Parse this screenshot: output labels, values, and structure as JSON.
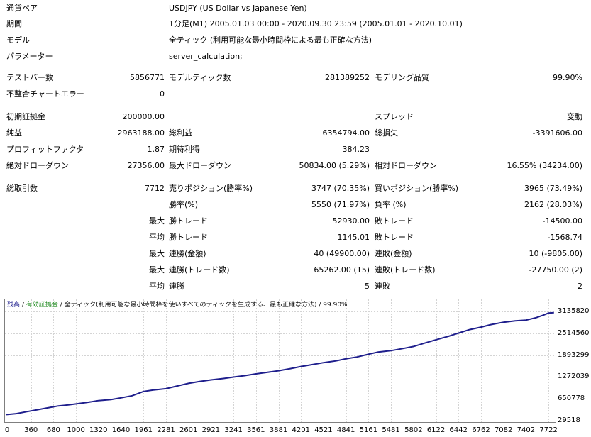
{
  "report": {
    "symbol_label": "通貨ペア",
    "symbol_value": "USDJPY (US Dollar vs Japanese Yen)",
    "period_label": "期間",
    "period_value": "1分足(M1) 2005.01.03 00:00 - 2020.09.30 23:59 (2005.01.01 - 2020.10.01)",
    "model_label": "モデル",
    "model_value": "全ティック (利用可能な最小時間枠による最も正確な方法)",
    "params_label": "パラメーター",
    "params_value": "server_calculation;",
    "bars_label": "テストバー数",
    "bars_value": "5856771",
    "ticks_label": "モデルティック数",
    "ticks_value": "281389252",
    "quality_label": "モデリング品質",
    "quality_value": "99.90%",
    "mismatch_label": "不整合チャートエラー",
    "mismatch_value": "0",
    "deposit_label": "初期証拠金",
    "deposit_value": "200000.00",
    "spread_label": "スプレッド",
    "spread_value": "変動",
    "net_label": "純益",
    "net_value": "2963188.00",
    "gross_profit_label": "総利益",
    "gross_profit_value": "6354794.00",
    "gross_loss_label": "総損失",
    "gross_loss_value": "-3391606.00",
    "pf_label": "プロフィットファクタ",
    "pf_value": "1.87",
    "expected_label": "期待利得",
    "expected_value": "384.23",
    "abs_dd_label": "絶対ドローダウン",
    "abs_dd_value": "27356.00",
    "max_dd_label": "最大ドローダウン",
    "max_dd_value": "50834.00 (5.29%)",
    "rel_dd_label": "相対ドローダウン",
    "rel_dd_value": "16.55% (34234.00)",
    "total_trades_label": "総取引数",
    "total_trades_value": "7712",
    "short_label": "売りポジション(勝率%)",
    "short_value": "3747 (70.35%)",
    "long_label": "買いポジション(勝率%)",
    "long_value": "3965 (73.49%)",
    "win_rate_label": "勝率(%)",
    "win_rate_value": "5550 (71.97%)",
    "loss_rate_label": "負率 (%)",
    "loss_rate_value": "2162 (28.03%)",
    "max_word": "最大",
    "avg_word": "平均",
    "max_win_label": "勝トレード",
    "max_win_value": "52930.00",
    "max_loss_label": "敗トレード",
    "max_loss_value": "-14500.00",
    "avg_win_label": "勝トレード",
    "avg_win_value": "1145.01",
    "avg_loss_label": "敗トレード",
    "avg_loss_value": "-1568.74",
    "max_cons_wins_label": "連勝(金額)",
    "max_cons_wins_value": "40 (49900.00)",
    "max_cons_losses_label": "連敗(金額)",
    "max_cons_losses_value": "10 (-9805.00)",
    "max_cons_profit_label": "連勝(トレード数)",
    "max_cons_profit_value": "65262.00 (15)",
    "max_cons_loss_label": "連敗(トレード数)",
    "max_cons_loss_value": "-27750.00 (2)",
    "avg_cons_wins_label": "連勝",
    "avg_cons_wins_value": "5",
    "avg_cons_losses_label": "連敗",
    "avg_cons_losses_value": "2"
  },
  "legend": {
    "balance": "残高",
    "sep1": " / ",
    "equity": "有効証拠金",
    "sep2": " / ",
    "model_desc": "全ティック(利用可能な最小時間枠を使いすべてのティックを生成する、最も正確な方法)",
    "sep3": " / ",
    "quality": "99.90%"
  },
  "colors": {
    "balance_line": "#1e1e8c",
    "balance_legend": "#1e1e8c",
    "equity_legend": "#1f8a1f",
    "grid": "#d4d4d4"
  },
  "chart_data": {
    "type": "line",
    "title": "",
    "xlabel": "",
    "ylabel": "",
    "x_ticks": [
      "0",
      "360",
      "680",
      "1000",
      "1320",
      "1640",
      "1961",
      "2281",
      "2601",
      "2921",
      "3241",
      "3561",
      "3881",
      "4201",
      "4521",
      "4841",
      "5161",
      "5481",
      "5802",
      "6122",
      "6442",
      "6762",
      "7082",
      "7402",
      "7722"
    ],
    "y_ticks": [
      "3135820",
      "2514560",
      "1893299",
      "1272039",
      "650778",
      "29518"
    ],
    "xlim": [
      0,
      7812
    ],
    "ylim": [
      29518,
      3135820
    ],
    "grid": true,
    "series": [
      {
        "x": [
          0,
          150,
          300,
          450,
          600,
          750,
          850,
          1000,
          1150,
          1320,
          1500,
          1640,
          1800,
          1961,
          2100,
          2281,
          2450,
          2601,
          2750,
          2921,
          3100,
          3241,
          3400,
          3561,
          3700,
          3881,
          4050,
          4201,
          4350,
          4521,
          4700,
          4841,
          5000,
          5161,
          5300,
          5481,
          5650,
          5802,
          5950,
          6122,
          6300,
          6442,
          6600,
          6762,
          6900,
          7082,
          7250,
          7402,
          7550,
          7650,
          7722,
          7800
        ],
        "y": [
          200000,
          230000,
          285000,
          340000,
          395000,
          450000,
          470000,
          505000,
          545000,
          600000,
          630000,
          680000,
          740000,
          860000,
          900000,
          940000,
          1020000,
          1090000,
          1140000,
          1190000,
          1230000,
          1270000,
          1310000,
          1360000,
          1400000,
          1450000,
          1510000,
          1570000,
          1620000,
          1680000,
          1730000,
          1790000,
          1840000,
          1920000,
          1980000,
          2020000,
          2080000,
          2140000,
          2230000,
          2330000,
          2430000,
          2520000,
          2620000,
          2690000,
          2760000,
          2830000,
          2870000,
          2890000,
          2960000,
          3030000,
          3090000,
          3100000
        ]
      }
    ]
  }
}
